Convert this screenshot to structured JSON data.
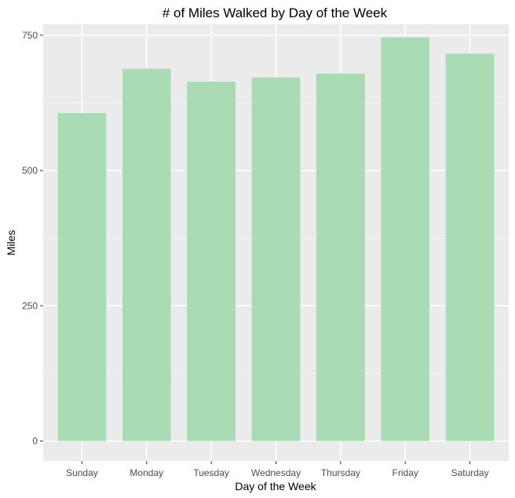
{
  "chart_data": {
    "type": "bar",
    "title": "# of Miles Walked by Day of the Week",
    "xlabel": "Day of the Week",
    "ylabel": "Miles",
    "categories": [
      "Sunday",
      "Monday",
      "Tuesday",
      "Wednesday",
      "Thursday",
      "Friday",
      "Saturday"
    ],
    "values": [
      606,
      688,
      664,
      672,
      679,
      746,
      716
    ],
    "ylim": [
      -37,
      770
    ],
    "yticks": [
      0,
      250,
      500,
      750
    ],
    "ytick_labels": [
      "0",
      "250",
      "500",
      "750"
    ],
    "grid": true,
    "legend": "none",
    "colors": {
      "bar": "#a9dbb5",
      "panel": "#ebebeb",
      "grid_major": "#ffffff",
      "grid_minor": "#f5f5f5",
      "tick_text": "#4d4d4d",
      "tick_mark": "#333333"
    }
  }
}
